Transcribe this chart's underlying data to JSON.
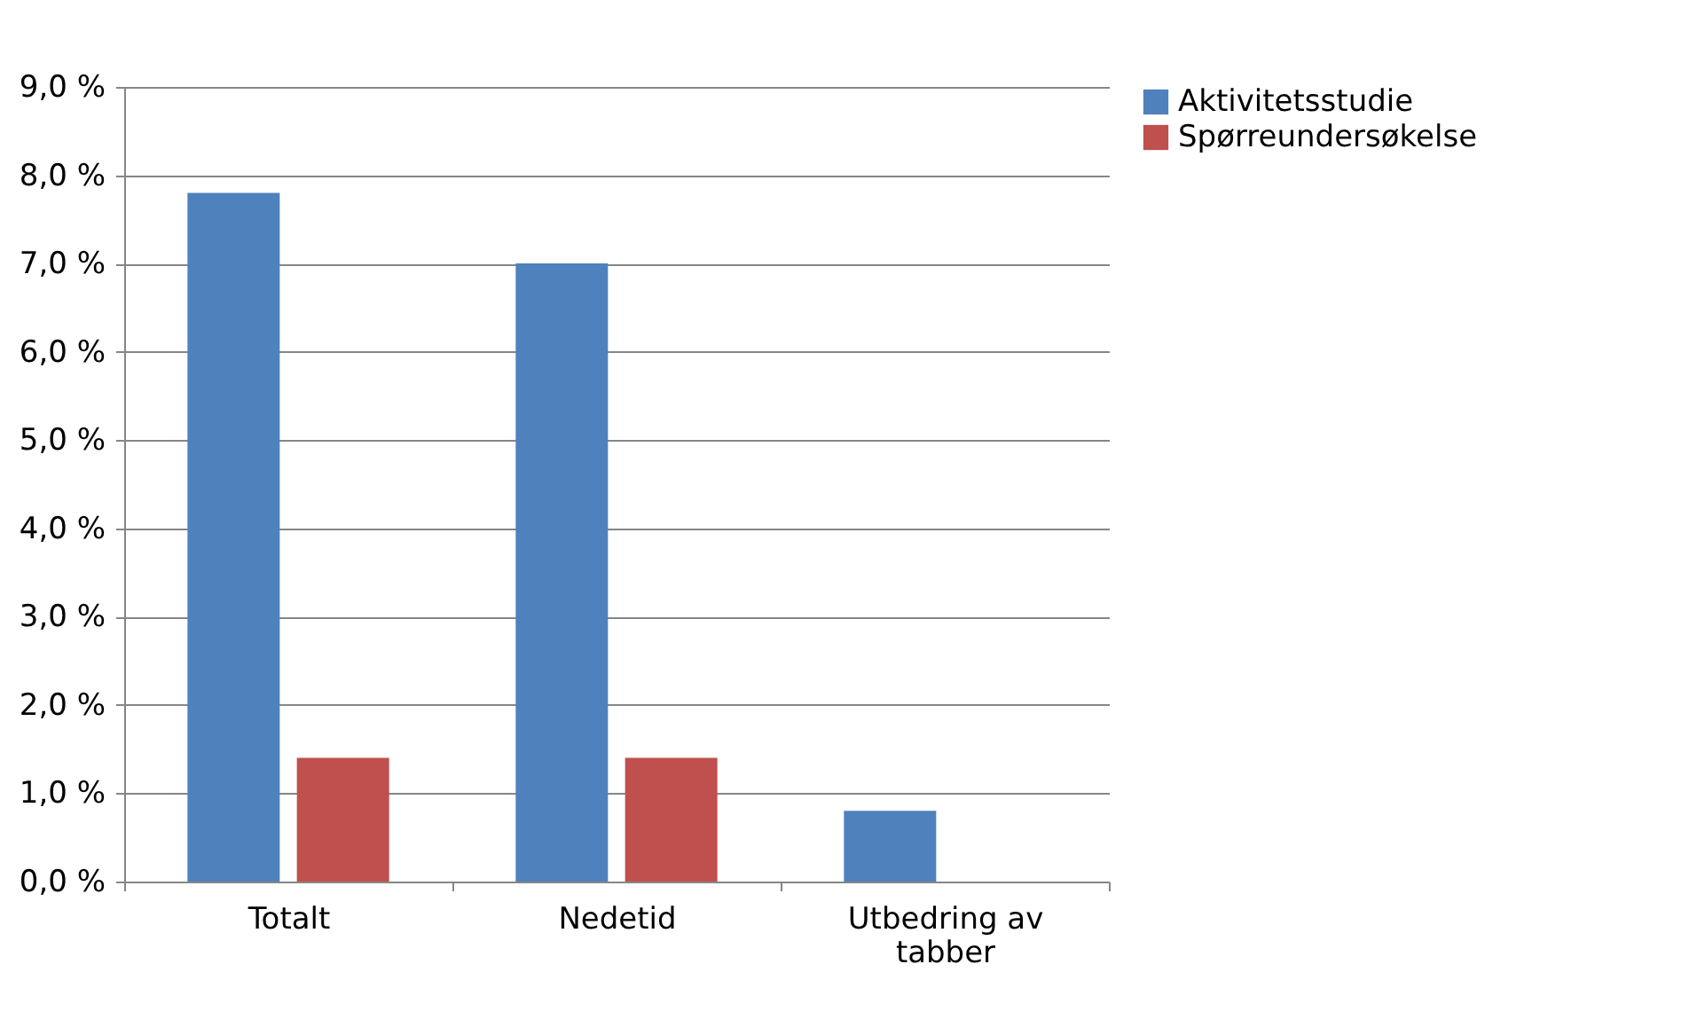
{
  "chart_data": {
    "type": "bar",
    "categories": [
      "Totalt",
      "Nedetid",
      "Utbedring av tabber"
    ],
    "series": [
      {
        "name": "Aktivitetsstudie",
        "color": "#4f81bd",
        "values": [
          7.8,
          7.0,
          0.8
        ]
      },
      {
        "name": "Spørreundersøkelse",
        "color": "#c0504d",
        "values": [
          1.4,
          1.4,
          0
        ]
      }
    ],
    "ylim": [
      0,
      9
    ],
    "yticks": [
      {
        "value": 0,
        "label": "0,0 %"
      },
      {
        "value": 1,
        "label": "1,0 %"
      },
      {
        "value": 2,
        "label": "2,0 %"
      },
      {
        "value": 3,
        "label": "3,0 %"
      },
      {
        "value": 4,
        "label": "4,0 %"
      },
      {
        "value": 5,
        "label": "5,0 %"
      },
      {
        "value": 6,
        "label": "6,0 %"
      },
      {
        "value": 7,
        "label": "7,0 %"
      },
      {
        "value": 8,
        "label": "8,0 %"
      },
      {
        "value": 9,
        "label": "9,0 %"
      }
    ],
    "grid": "y",
    "legend": "right"
  }
}
